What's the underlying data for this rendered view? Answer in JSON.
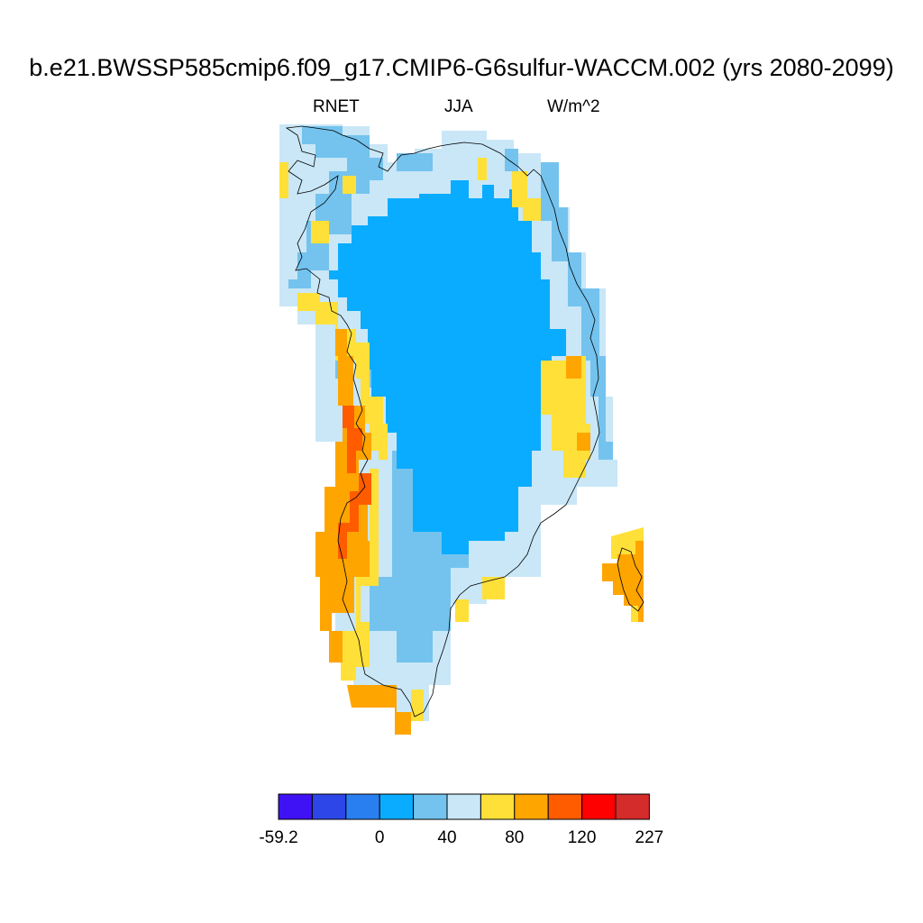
{
  "title": "b.e21.BWSSP585cmip6.f09_g17.CMIP6-G6sulfur-WACCM.002 (yrs 2080-2099)",
  "subtitle": {
    "variable": "RNET",
    "season": "JJA",
    "units": "W/m^2"
  },
  "colorbar": {
    "colors": [
      "#3f12f5",
      "#2d46e8",
      "#2a7ff0",
      "#0aacff",
      "#74c3ee",
      "#c9e7f7",
      "#ffe039",
      "#ffa500",
      "#ff5c00",
      "#ff0000",
      "#d42b2b"
    ],
    "tick_labels": [
      {
        "boundary": 0,
        "text": "-59.2"
      },
      {
        "boundary": 3,
        "text": "0"
      },
      {
        "boundary": 5,
        "text": "40"
      },
      {
        "boundary": 7,
        "text": "80"
      },
      {
        "boundary": 9,
        "text": "120"
      },
      {
        "boundary": 11,
        "text": "227"
      }
    ]
  }
}
